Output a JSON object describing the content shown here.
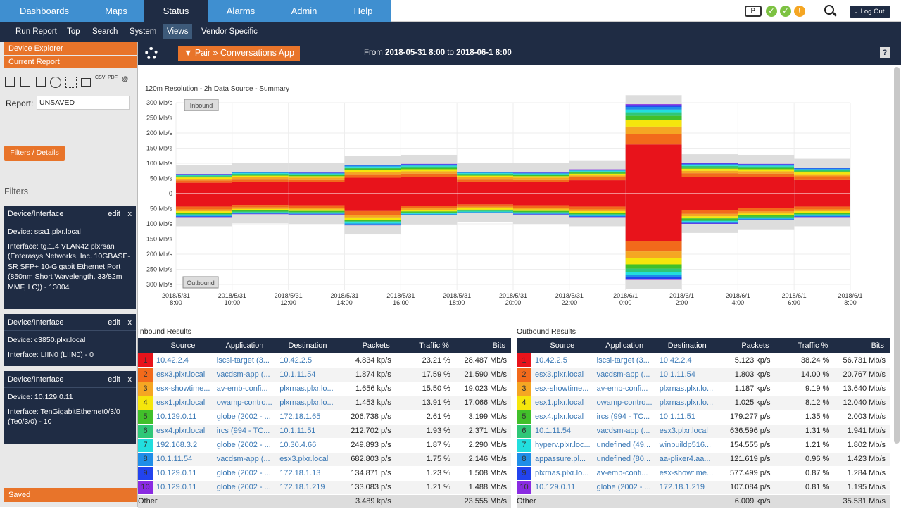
{
  "nav": {
    "tabs": [
      "Dashboards",
      "Maps",
      "Status",
      "Alarms",
      "Admin",
      "Help"
    ],
    "logout": "Log Out"
  },
  "subnav": [
    "Run Report",
    "Top",
    "Search",
    "System",
    "Views",
    "Vendor Specific"
  ],
  "sidebar": {
    "device_explorer": "Device Explorer",
    "current_report": "Current Report",
    "report_label": "Report:",
    "report_value": "UNSAVED",
    "filters_btn": "Filters / Details",
    "filters_title": "Filters",
    "saved": "Saved",
    "boxes": [
      {
        "title": "Device/Interface",
        "edit": "edit",
        "x": "x",
        "lines": [
          "Device: ssa1.plxr.local",
          "Interface: tg.1.4 VLAN42 plxrsan (Enterasys Networks, Inc. 10GBASE-SR SFP+ 10-Gigabit Ethernet Port (850nm Short Wavelength, 33/82m MMF, LC)) - 13004"
        ]
      },
      {
        "title": "Device/Interface",
        "edit": "edit",
        "x": "x",
        "lines": [
          "Device: c3850.plxr.local",
          "Interface: LIIN0 (LIIN0) - 0"
        ]
      },
      {
        "title": "Device/Interface",
        "edit": "edit",
        "x": "x",
        "lines": [
          "Device: 10.129.0.11",
          "Interface: TenGigabitEthernet0/3/0 (Te0/3/0) - 10"
        ]
      }
    ]
  },
  "report": {
    "pair_btn": "▼ Pair » Conversations App",
    "from_label": "From",
    "from": "2018-05-31 8:00",
    "to_label": "to",
    "to": "2018-06-1 8:00",
    "help": "?"
  },
  "chart_data": {
    "type": "area",
    "title": "120m Resolution - 2h Data Source - Summary",
    "x": [
      "2018/5/31 8:00",
      "2018/5/31 10:00",
      "2018/5/31 12:00",
      "2018/5/31 14:00",
      "2018/5/31 16:00",
      "2018/5/31 18:00",
      "2018/5/31 20:00",
      "2018/5/31 22:00",
      "2018/6/1 0:00",
      "2018/6/1 2:00",
      "2018/6/1 4:00",
      "2018/6/1 6:00",
      "2018/6/1 8:00"
    ],
    "y_ticks": [
      "300 Mb/s",
      "250 Mb/s",
      "200 Mb/s",
      "150 Mb/s",
      "100 Mb/s",
      "50 Mb/s",
      "0",
      "50 Mb/s",
      "100 Mb/s",
      "150 Mb/s",
      "200 Mb/s",
      "250 Mb/s",
      "300 Mb/s"
    ],
    "labels": {
      "inbound": "Inbound",
      "outbound": "Outbound"
    },
    "inbound_total": [
      65,
      72,
      70,
      95,
      98,
      72,
      70,
      80,
      295,
      100,
      98,
      85,
      80
    ],
    "outbound_total": [
      78,
      68,
      70,
      105,
      72,
      65,
      70,
      78,
      285,
      100,
      88,
      78,
      68
    ],
    "ylim": [
      -300,
      300
    ]
  },
  "inbound": {
    "title": "Inbound Results",
    "headers": [
      "Source",
      "Application",
      "Destination",
      "Packets",
      "Traffic %",
      "Bits"
    ],
    "rows": [
      [
        "1",
        "10.42.2.4",
        "iscsi-target (3...",
        "10.42.2.5",
        "4.834 kp/s",
        "23.21 %",
        "28.487 Mb/s"
      ],
      [
        "2",
        "esx3.plxr.local",
        "vacdsm-app (...",
        "10.1.11.54",
        "1.874 kp/s",
        "17.59 %",
        "21.590 Mb/s"
      ],
      [
        "3",
        "esx-showtime...",
        "av-emb-confi...",
        "plxrnas.plxr.lo...",
        "1.656 kp/s",
        "15.50 %",
        "19.023 Mb/s"
      ],
      [
        "4",
        "esx1.plxr.local",
        "owamp-contro...",
        "plxrnas.plxr.lo...",
        "1.453 kp/s",
        "13.91 %",
        "17.066 Mb/s"
      ],
      [
        "5",
        "10.129.0.11",
        "globe (2002 - ...",
        "172.18.1.65",
        "206.738 p/s",
        "2.61 %",
        "3.199 Mb/s"
      ],
      [
        "6",
        "esx4.plxr.local",
        "ircs (994 - TC...",
        "10.1.11.51",
        "212.702 p/s",
        "1.93 %",
        "2.371 Mb/s"
      ],
      [
        "7",
        "192.168.3.2",
        "globe (2002 - ...",
        "10.30.4.66",
        "249.893 p/s",
        "1.87 %",
        "2.290 Mb/s"
      ],
      [
        "8",
        "10.1.11.54",
        "vacdsm-app (...",
        "esx3.plxr.local",
        "682.803 p/s",
        "1.75 %",
        "2.146 Mb/s"
      ],
      [
        "9",
        "10.129.0.11",
        "globe (2002 - ...",
        "172.18.1.13",
        "134.871 p/s",
        "1.23 %",
        "1.508 Mb/s"
      ],
      [
        "10",
        "10.129.0.11",
        "globe (2002 - ...",
        "172.18.1.219",
        "133.083 p/s",
        "1.21 %",
        "1.488 Mb/s"
      ]
    ],
    "other": [
      "Other",
      "3.489 kp/s",
      "23.555 Mb/s"
    ]
  },
  "outbound": {
    "title": "Outbound Results",
    "headers": [
      "Source",
      "Application",
      "Destination",
      "Packets",
      "Traffic %",
      "Bits"
    ],
    "rows": [
      [
        "1",
        "10.42.2.5",
        "iscsi-target (3...",
        "10.42.2.4",
        "5.123 kp/s",
        "38.24 %",
        "56.731 Mb/s"
      ],
      [
        "2",
        "esx3.plxr.local",
        "vacdsm-app (...",
        "10.1.11.54",
        "1.803 kp/s",
        "14.00 %",
        "20.767 Mb/s"
      ],
      [
        "3",
        "esx-showtime...",
        "av-emb-confi...",
        "plxrnas.plxr.lo...",
        "1.187 kp/s",
        "9.19 %",
        "13.640 Mb/s"
      ],
      [
        "4",
        "esx1.plxr.local",
        "owamp-contro...",
        "plxrnas.plxr.lo...",
        "1.025 kp/s",
        "8.12 %",
        "12.040 Mb/s"
      ],
      [
        "5",
        "esx4.plxr.local",
        "ircs (994 - TC...",
        "10.1.11.51",
        "179.277 p/s",
        "1.35 %",
        "2.003 Mb/s"
      ],
      [
        "6",
        "10.1.11.54",
        "vacdsm-app (...",
        "esx3.plxr.local",
        "636.596 p/s",
        "1.31 %",
        "1.941 Mb/s"
      ],
      [
        "7",
        "hyperv.plxr.loc...",
        "undefined (49...",
        "winbuildp516...",
        "154.555 p/s",
        "1.21 %",
        "1.802 Mb/s"
      ],
      [
        "8",
        "appassure.pl...",
        "undefined (80...",
        "aa-plixer4.aa...",
        "121.619 p/s",
        "0.96 %",
        "1.423 Mb/s"
      ],
      [
        "9",
        "plxrnas.plxr.lo...",
        "av-emb-confi...",
        "esx-showtime...",
        "577.499 p/s",
        "0.87 %",
        "1.284 Mb/s"
      ],
      [
        "10",
        "10.129.0.11",
        "globe (2002 - ...",
        "172.18.1.219",
        "107.084 p/s",
        "0.81 %",
        "1.195 Mb/s"
      ]
    ],
    "other": [
      "Other",
      "6.009 kp/s",
      "35.531 Mb/s"
    ]
  },
  "rank_colors": [
    "#e8131b",
    "#f26a1b",
    "#f5a623",
    "#f5e60c",
    "#41c02a",
    "#2fc777",
    "#22dede",
    "#1f8ee8",
    "#2243ee",
    "#8a2be2"
  ]
}
